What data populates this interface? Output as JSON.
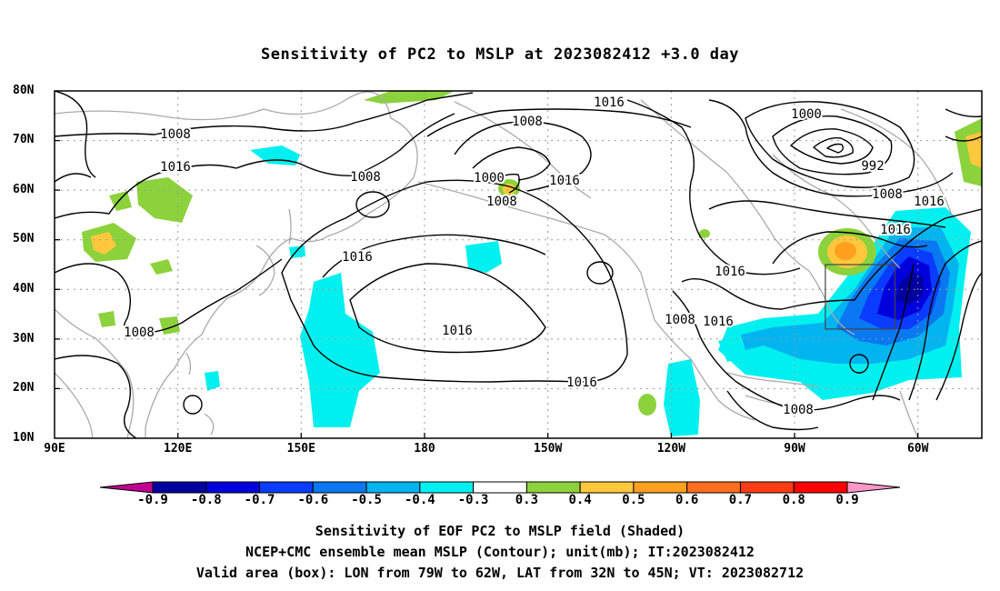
{
  "title": "Sensitivity of PC2 to MSLP at 2023082412 +3.0 day",
  "lat_labels": [
    "80N",
    "70N",
    "60N",
    "50N",
    "40N",
    "30N",
    "20N",
    "10N"
  ],
  "lon_labels": [
    "90E",
    "120E",
    "150E",
    "180",
    "150W",
    "120W",
    "90W",
    "60W"
  ],
  "contour_labels": [
    {
      "text": "1016"
    },
    {
      "text": "1008"
    },
    {
      "text": "1008"
    },
    {
      "text": "1016"
    },
    {
      "text": "1000"
    },
    {
      "text": "1008"
    },
    {
      "text": "1008"
    },
    {
      "text": "1016"
    },
    {
      "text": "1016"
    },
    {
      "text": "1008"
    },
    {
      "text": "1016"
    },
    {
      "text": "1016"
    },
    {
      "text": "1008"
    },
    {
      "text": "1016"
    },
    {
      "text": "1016"
    },
    {
      "text": "1008"
    },
    {
      "text": "1000"
    },
    {
      "text": "992"
    },
    {
      "text": "1008"
    },
    {
      "text": "1016"
    },
    {
      "text": "1016"
    }
  ],
  "colorbar": {
    "colors": [
      "#c0008f",
      "#0000a0",
      "#0000dc",
      "#0a3cff",
      "#0a78f0",
      "#00b4f0",
      "#00f0f0",
      "#ffffff",
      "#8cd23c",
      "#ffc83c",
      "#ffa01e",
      "#ff6e1e",
      "#ff3c14",
      "#ff0000",
      "#ff96c8"
    ],
    "labels": [
      "-0.9",
      "-0.8",
      "-0.7",
      "-0.6",
      "-0.5",
      "-0.4",
      "-0.3",
      "0.3",
      "0.4",
      "0.5",
      "0.6",
      "0.7",
      "0.8",
      "0.9"
    ]
  },
  "captions": [
    "Sensitivity of EOF PC2 to MSLP field (Shaded)",
    "NCEP+CMC ensemble mean MSLP (Contour); unit(mb); IT:2023082412",
    "Valid area (box): LON from 79W to 62W, LAT from 32N to 45N; VT: 2023082712"
  ],
  "valid_box": {
    "lon_w": -79,
    "lon_e": -62,
    "lat_s": 32,
    "lat_n": 45
  }
}
